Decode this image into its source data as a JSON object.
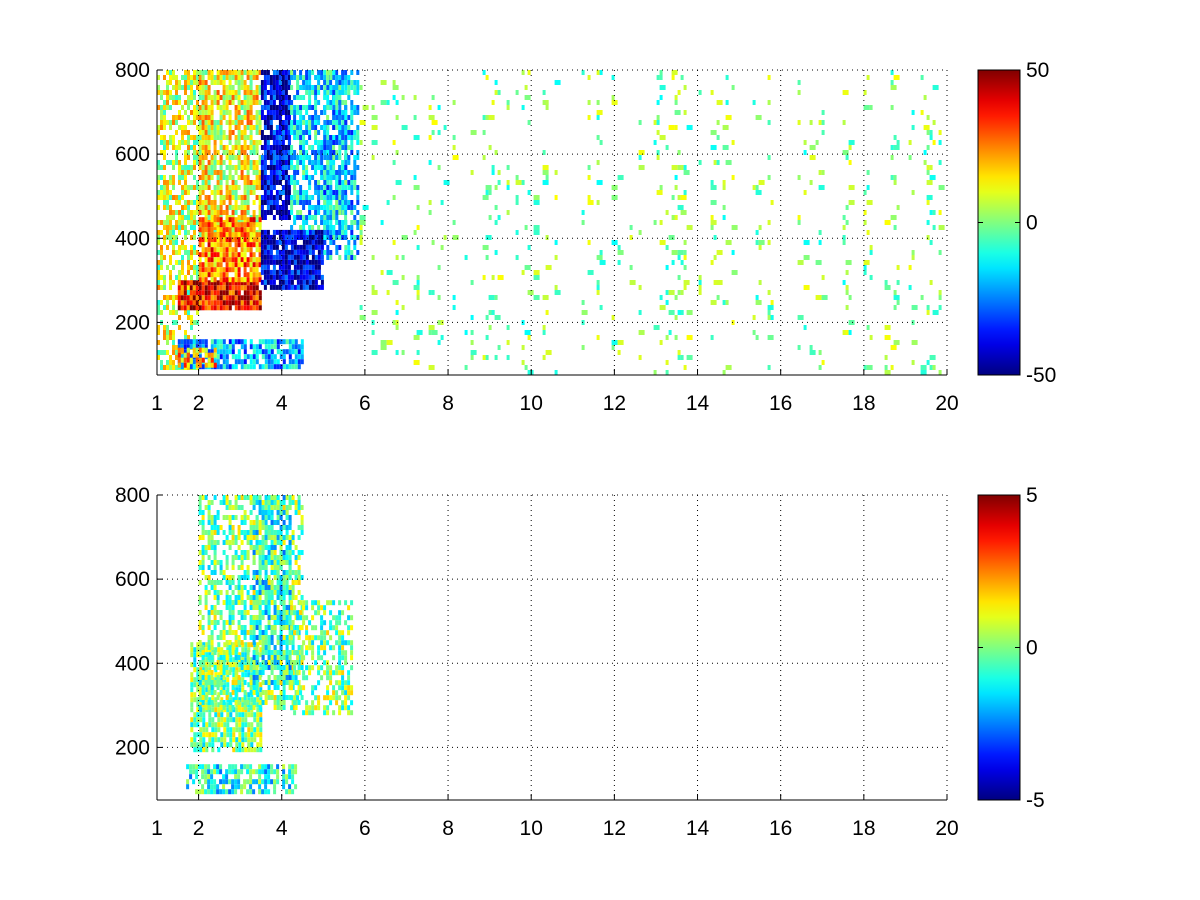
{
  "chart_data": [
    {
      "type": "heatmap",
      "title": "",
      "xlabel": "",
      "ylabel": "",
      "xlim": [
        1,
        20
      ],
      "ylim": [
        75,
        800
      ],
      "xticks": [
        "1",
        "2",
        "4",
        "6",
        "8",
        "10",
        "12",
        "14",
        "16",
        "18",
        "20"
      ],
      "yticks": [
        "200",
        "400",
        "600",
        "800"
      ],
      "grid": true,
      "colormap": "jet",
      "colorbar": {
        "range": [
          -50,
          50
        ],
        "ticks": [
          "-50",
          "0",
          "50"
        ]
      },
      "regions": [
        {
          "x": [
            1.0,
            2.0
          ],
          "y": [
            90,
            800
          ],
          "value": 8,
          "fill_density": 0.6
        },
        {
          "x": [
            2.0,
            3.5
          ],
          "y": [
            400,
            800
          ],
          "value": 12,
          "fill_density": 0.8
        },
        {
          "x": [
            3.5,
            4.2
          ],
          "y": [
            450,
            800
          ],
          "value": -40,
          "fill_density": 0.9
        },
        {
          "x": [
            4.2,
            5.5
          ],
          "y": [
            400,
            800
          ],
          "value": -15,
          "fill_density": 0.7
        },
        {
          "x": [
            1.5,
            3.5
          ],
          "y": [
            230,
            300
          ],
          "value": 38,
          "fill_density": 0.95
        },
        {
          "x": [
            2.0,
            3.5
          ],
          "y": [
            300,
            450
          ],
          "value": 25,
          "fill_density": 0.9
        },
        {
          "x": [
            3.5,
            5.0
          ],
          "y": [
            280,
            420
          ],
          "value": -42,
          "fill_density": 0.9
        },
        {
          "x": [
            5.0,
            5.8
          ],
          "y": [
            350,
            800
          ],
          "value": -18,
          "fill_density": 0.6
        },
        {
          "x": [
            1.5,
            4.5
          ],
          "y": [
            90,
            160
          ],
          "value": -20,
          "fill_density": 0.8
        },
        {
          "x": [
            1.5,
            2.5
          ],
          "y": [
            95,
            140
          ],
          "value": 20,
          "fill_density": 0.7
        },
        {
          "x": [
            5.8,
            20
          ],
          "y": [
            80,
            800
          ],
          "value": 0,
          "fill_density": 0.12
        }
      ]
    },
    {
      "type": "heatmap",
      "title": "",
      "xlabel": "",
      "ylabel": "",
      "xlim": [
        1,
        20
      ],
      "ylim": [
        75,
        800
      ],
      "xticks": [
        "1",
        "2",
        "4",
        "6",
        "8",
        "10",
        "12",
        "14",
        "16",
        "18",
        "20"
      ],
      "yticks": [
        "200",
        "400",
        "600",
        "800"
      ],
      "grid": true,
      "colormap": "jet",
      "colorbar": {
        "range": [
          -5,
          5
        ],
        "ticks": [
          "-5",
          "0",
          "5"
        ]
      },
      "regions": [
        {
          "x": [
            1.8,
            3.5
          ],
          "y": [
            190,
            450
          ],
          "value": 0,
          "fill_density": 0.8
        },
        {
          "x": [
            2.0,
            4.5
          ],
          "y": [
            300,
            800
          ],
          "value": 0,
          "fill_density": 0.55
        },
        {
          "x": [
            3.3,
            4.2
          ],
          "y": [
            350,
            800
          ],
          "value": -1,
          "fill_density": 0.6
        },
        {
          "x": [
            4.2,
            5.7
          ],
          "y": [
            280,
            550
          ],
          "value": 0,
          "fill_density": 0.5
        },
        {
          "x": [
            1.7,
            4.3
          ],
          "y": [
            95,
            160
          ],
          "value": -1,
          "fill_density": 0.7
        }
      ]
    }
  ]
}
